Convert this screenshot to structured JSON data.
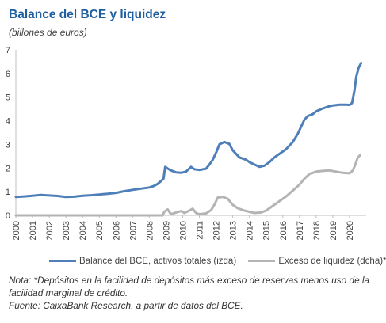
{
  "title": "Balance del BCE y liquidez",
  "subtitle": "(billones de euros)",
  "note_text": "Nota: *Depósitos en la facilidad de depósitos más exceso de reservas menos uso de la facilidad marginal de crédito.",
  "source_text": "Fuente: CaixaBank Research, a partir de datos del BCE.",
  "colors": {
    "balance": "#4f7fb8",
    "excess": "#b4b4b4"
  },
  "chart_data": {
    "type": "line",
    "title": "Balance del BCE y liquidez",
    "subtitle": "(billones de euros)",
    "ylim": [
      0,
      7
    ],
    "yticks": [
      0,
      1,
      2,
      3,
      4,
      5,
      6,
      7
    ],
    "xlim": [
      2000,
      2021
    ],
    "xticks": [
      2000,
      2001,
      2002,
      2003,
      2004,
      2005,
      2006,
      2007,
      2008,
      2009,
      2010,
      2011,
      2012,
      2013,
      2014,
      2015,
      2016,
      2017,
      2018,
      2019,
      2020
    ],
    "grid": false,
    "legend_position": "bottom",
    "series": [
      {
        "name": "Balance del BCE, activos totales (izda)",
        "color": "#4f7fb8",
        "points": [
          [
            2000.0,
            0.78
          ],
          [
            2000.5,
            0.8
          ],
          [
            2001.0,
            0.83
          ],
          [
            2001.5,
            0.86
          ],
          [
            2002.0,
            0.84
          ],
          [
            2002.5,
            0.82
          ],
          [
            2003.0,
            0.78
          ],
          [
            2003.5,
            0.79
          ],
          [
            2004.0,
            0.83
          ],
          [
            2004.5,
            0.85
          ],
          [
            2005.0,
            0.88
          ],
          [
            2005.5,
            0.91
          ],
          [
            2006.0,
            0.95
          ],
          [
            2006.5,
            1.02
          ],
          [
            2007.0,
            1.08
          ],
          [
            2007.5,
            1.13
          ],
          [
            2008.0,
            1.18
          ],
          [
            2008.3,
            1.25
          ],
          [
            2008.5,
            1.33
          ],
          [
            2008.7,
            1.45
          ],
          [
            2008.85,
            1.55
          ],
          [
            2008.95,
            2.05
          ],
          [
            2009.1,
            1.98
          ],
          [
            2009.3,
            1.9
          ],
          [
            2009.6,
            1.82
          ],
          [
            2009.9,
            1.8
          ],
          [
            2010.2,
            1.85
          ],
          [
            2010.5,
            2.05
          ],
          [
            2010.7,
            1.95
          ],
          [
            2011.0,
            1.92
          ],
          [
            2011.4,
            1.97
          ],
          [
            2011.6,
            2.15
          ],
          [
            2011.8,
            2.35
          ],
          [
            2012.0,
            2.65
          ],
          [
            2012.2,
            3.0
          ],
          [
            2012.5,
            3.1
          ],
          [
            2012.8,
            3.02
          ],
          [
            2013.0,
            2.75
          ],
          [
            2013.4,
            2.45
          ],
          [
            2013.8,
            2.35
          ],
          [
            2014.0,
            2.25
          ],
          [
            2014.3,
            2.15
          ],
          [
            2014.6,
            2.05
          ],
          [
            2014.9,
            2.1
          ],
          [
            2015.2,
            2.25
          ],
          [
            2015.5,
            2.45
          ],
          [
            2015.9,
            2.65
          ],
          [
            2016.2,
            2.8
          ],
          [
            2016.6,
            3.1
          ],
          [
            2016.9,
            3.45
          ],
          [
            2017.1,
            3.75
          ],
          [
            2017.3,
            4.05
          ],
          [
            2017.5,
            4.2
          ],
          [
            2017.8,
            4.28
          ],
          [
            2018.0,
            4.4
          ],
          [
            2018.4,
            4.52
          ],
          [
            2018.8,
            4.62
          ],
          [
            2019.0,
            4.65
          ],
          [
            2019.4,
            4.68
          ],
          [
            2019.8,
            4.68
          ],
          [
            2020.0,
            4.67
          ],
          [
            2020.15,
            4.75
          ],
          [
            2020.3,
            5.3
          ],
          [
            2020.4,
            5.85
          ],
          [
            2020.55,
            6.25
          ],
          [
            2020.7,
            6.45
          ]
        ]
      },
      {
        "name": "Exceso de liquidez (dcha)*",
        "color": "#b4b4b4",
        "points": [
          [
            2000.0,
            0.0
          ],
          [
            2008.8,
            0.0
          ],
          [
            2008.9,
            0.15
          ],
          [
            2009.1,
            0.25
          ],
          [
            2009.3,
            0.05
          ],
          [
            2009.6,
            0.12
          ],
          [
            2009.9,
            0.18
          ],
          [
            2010.1,
            0.1
          ],
          [
            2010.4,
            0.2
          ],
          [
            2010.6,
            0.28
          ],
          [
            2010.8,
            0.1
          ],
          [
            2011.0,
            0.05
          ],
          [
            2011.4,
            0.08
          ],
          [
            2011.7,
            0.22
          ],
          [
            2011.9,
            0.45
          ],
          [
            2012.1,
            0.75
          ],
          [
            2012.4,
            0.78
          ],
          [
            2012.7,
            0.7
          ],
          [
            2013.0,
            0.45
          ],
          [
            2013.3,
            0.3
          ],
          [
            2013.7,
            0.2
          ],
          [
            2014.0,
            0.15
          ],
          [
            2014.3,
            0.1
          ],
          [
            2014.7,
            0.12
          ],
          [
            2015.0,
            0.2
          ],
          [
            2015.4,
            0.4
          ],
          [
            2015.8,
            0.6
          ],
          [
            2016.2,
            0.8
          ],
          [
            2016.6,
            1.05
          ],
          [
            2017.0,
            1.3
          ],
          [
            2017.3,
            1.55
          ],
          [
            2017.6,
            1.75
          ],
          [
            2018.0,
            1.85
          ],
          [
            2018.4,
            1.88
          ],
          [
            2018.8,
            1.9
          ],
          [
            2019.2,
            1.85
          ],
          [
            2019.6,
            1.8
          ],
          [
            2020.0,
            1.78
          ],
          [
            2020.2,
            1.9
          ],
          [
            2020.35,
            2.15
          ],
          [
            2020.5,
            2.45
          ],
          [
            2020.65,
            2.55
          ]
        ]
      }
    ]
  }
}
